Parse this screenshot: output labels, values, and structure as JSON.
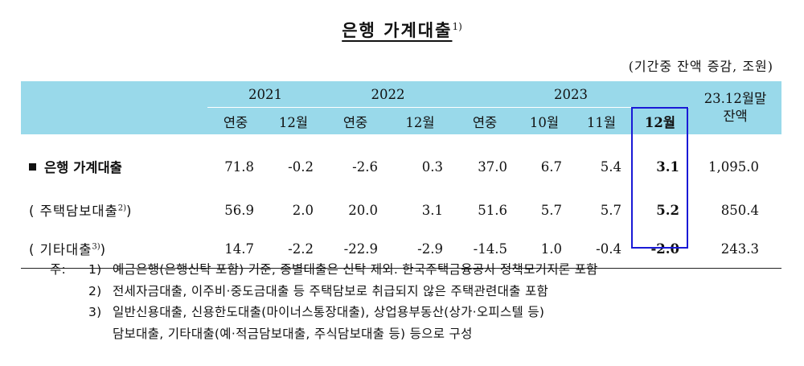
{
  "title": "은행 가계대출",
  "title_note": "1)",
  "unit": "(기간중 잔액 증감, 조원)",
  "header": {
    "years": [
      "2021",
      "2022",
      "2023"
    ],
    "balance_label_line1": "23.12월말",
    "balance_label_line2": "잔액",
    "months": [
      "연중",
      "12월",
      "연중",
      "12월",
      "연중",
      "10월",
      "11월",
      "12월"
    ]
  },
  "rows": [
    {
      "label": "은행 가계대출",
      "label_note": "",
      "values": [
        "71.8",
        "-0.2",
        "-2.6",
        "0.3",
        "37.0",
        "6.7",
        "5.4",
        "3.1"
      ],
      "balance": "1,095.0"
    },
    {
      "label": "( 주택담보대출",
      "label_note": "2)",
      "label_close": ")",
      "values": [
        "56.9",
        "2.0",
        "20.0",
        "3.1",
        "51.6",
        "5.7",
        "5.7",
        "5.2"
      ],
      "balance": "850.4"
    },
    {
      "label": "( 기타대출",
      "label_note": "3)",
      "label_close": ")",
      "values": [
        "14.7",
        "-2.2",
        "-22.9",
        "-2.9",
        "-14.5",
        "1.0",
        "-0.4",
        "-2.0"
      ],
      "balance": "243.3"
    }
  ],
  "notes": {
    "prefix": "주:",
    "items": [
      {
        "num": "1)",
        "text": "예금은행(은행신탁 포함) 기준, 종별대출은 신탁 제외. 한국주택금융공사 정책모기지론 포함"
      },
      {
        "num": "2)",
        "text": "전세자금대출, 이주비·중도금대출 등 주택담보로 취급되지 않은 주택관련대출 포함"
      },
      {
        "num": "3)",
        "text": "일반신용대출, 신용한도대출(마이너스통장대출), 상업용부동산(상가·오피스텔 등)"
      }
    ],
    "continuation": "담보대출, 기타대출(예·적금담보대출, 주식담보대출 등) 등으로 구성"
  },
  "colors": {
    "header_bg": "#99d9ea",
    "highlight_border": "#1a1ad6"
  }
}
